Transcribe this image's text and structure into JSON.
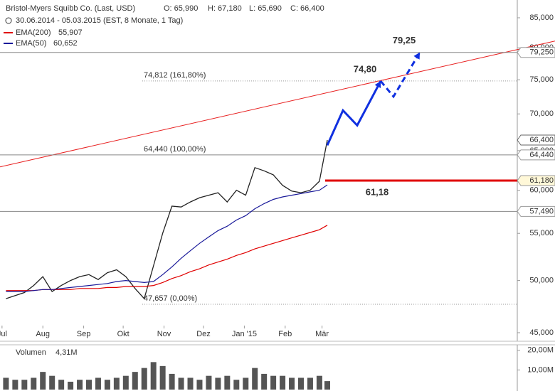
{
  "chart_data": {
    "type": "line",
    "title": "Bristol-Myers Squibb Co. (Last, USD)",
    "ohlc": [
      "O: 65,990",
      "H: 67,180",
      "L: 65,690",
      "C: 66,400"
    ],
    "subtitle": "30.06.2014 - 05.03.2015 (EST, 8 Monate, 1 Tag)",
    "log_scale": true,
    "xlim": [
      "2014-06-30",
      "2015-03-05"
    ],
    "xticks": [
      {
        "value": "2014-07-01",
        "label": "Jul"
      },
      {
        "value": "2014-08-01",
        "label": "Aug"
      },
      {
        "value": "2014-09-01",
        "label": "Sep"
      },
      {
        "value": "2014-10-01",
        "label": "Okt"
      },
      {
        "value": "2014-11-01",
        "label": "Nov"
      },
      {
        "value": "2014-12-01",
        "label": "Dez"
      },
      {
        "value": "2015-01-01",
        "label": "Jan '15"
      },
      {
        "value": "2015-02-01",
        "label": "Feb"
      },
      {
        "value": "2015-03-01",
        "label": "Mär"
      }
    ],
    "ylim": [
      45,
      85
    ],
    "yticks": [
      {
        "value": 45,
        "label": "45,000"
      },
      {
        "value": 50,
        "label": "50,000"
      },
      {
        "value": 55,
        "label": "55,000"
      },
      {
        "value": 60,
        "label": "60,000"
      },
      {
        "value": 65,
        "label": "65,000"
      },
      {
        "value": 70,
        "label": "70,000"
      },
      {
        "value": 75,
        "label": "75,000"
      },
      {
        "value": 80,
        "label": "80,000"
      },
      {
        "value": 85,
        "label": "85,000"
      }
    ],
    "x": [
      "2014-07-04",
      "2014-07-11",
      "2014-07-18",
      "2014-07-25",
      "2014-08-01",
      "2014-08-08",
      "2014-08-15",
      "2014-08-22",
      "2014-08-29",
      "2014-09-05",
      "2014-09-12",
      "2014-09-19",
      "2014-09-26",
      "2014-10-03",
      "2014-10-10",
      "2014-10-17",
      "2014-10-24",
      "2014-10-31",
      "2014-11-07",
      "2014-11-14",
      "2014-11-21",
      "2014-11-28",
      "2014-12-05",
      "2014-12-12",
      "2014-12-19",
      "2014-12-26",
      "2015-01-02",
      "2015-01-09",
      "2015-01-16",
      "2015-01-23",
      "2015-01-30",
      "2015-02-06",
      "2015-02-13",
      "2015-02-20",
      "2015-02-27",
      "2015-03-05"
    ],
    "series": [
      {
        "name": "Price",
        "color": "#222222",
        "values": [
          48.2,
          48.5,
          48.8,
          49.5,
          50.4,
          48.9,
          49.5,
          50.0,
          50.4,
          50.6,
          50.1,
          50.8,
          51.1,
          50.4,
          49.2,
          48.2,
          51.5,
          55.0,
          58.1,
          58.0,
          58.6,
          59.1,
          59.4,
          59.7,
          58.6,
          60.0,
          59.4,
          62.8,
          62.4,
          61.9,
          60.6,
          59.9,
          59.7,
          60.0,
          61.1,
          66.4
        ],
        "last_label": "66,400"
      },
      {
        "name": "EMA(200)",
        "color": "#e00000",
        "last_label": "55,907",
        "values": [
          49.0,
          49.0,
          49.0,
          49.0,
          49.1,
          49.1,
          49.1,
          49.1,
          49.2,
          49.2,
          49.2,
          49.3,
          49.3,
          49.4,
          49.4,
          49.4,
          49.5,
          49.8,
          50.2,
          50.5,
          50.9,
          51.2,
          51.6,
          51.9,
          52.2,
          52.6,
          52.9,
          53.3,
          53.6,
          53.9,
          54.2,
          54.5,
          54.8,
          55.1,
          55.4,
          55.907
        ]
      },
      {
        "name": "EMA(50)",
        "color": "#1a1a9a",
        "last_label": "60,652",
        "values": [
          48.9,
          48.9,
          48.9,
          49.0,
          49.1,
          49.1,
          49.2,
          49.3,
          49.4,
          49.5,
          49.6,
          49.7,
          49.9,
          50.0,
          49.9,
          49.8,
          49.9,
          50.6,
          51.4,
          52.3,
          53.1,
          53.9,
          54.6,
          55.3,
          55.8,
          56.5,
          57.0,
          57.8,
          58.4,
          58.9,
          59.2,
          59.4,
          59.6,
          59.8,
          60.0,
          60.652
        ]
      }
    ],
    "trendline": {
      "color": "#e82020",
      "values": [
        62.9,
        81.1
      ]
    },
    "levels": [
      {
        "value": 79.25,
        "tag": "79,250",
        "color": "#888888",
        "style": "solid"
      },
      {
        "value": 74.812,
        "label": "74,812 (161,80%)",
        "color": "#999999",
        "style": "dotted"
      },
      {
        "value": 64.44,
        "label": "64,440 (100,00%)",
        "tag": "64,440",
        "color": "#888888",
        "style": "solid"
      },
      {
        "value": 61.18,
        "tag": "61,180",
        "annotation": "61,18",
        "color": "#e00000",
        "style": "thick"
      },
      {
        "value": 57.49,
        "tag": "57,490",
        "color": "#888888",
        "style": "solid"
      },
      {
        "value": 47.657,
        "label": "47,657 (0,00%)",
        "color": "#999999",
        "style": "dotted"
      }
    ],
    "projection": {
      "color": "#1030e0",
      "values": [
        65.7,
        70.5,
        68.4,
        74.8,
        72.5,
        79.25
      ],
      "solid_until": 3,
      "value_labels": {
        "3": "74,80",
        "5": "79,25"
      }
    },
    "volume": {
      "name": "Volumen",
      "last_label": "4,31M",
      "color": "#555555",
      "ylim": [
        0,
        21
      ],
      "yticks": [
        {
          "value": 10,
          "label": "10,00M"
        },
        {
          "value": 20,
          "label": "20,00M"
        }
      ],
      "values": [
        6,
        5,
        5,
        6,
        9,
        7,
        5,
        4,
        5,
        5,
        6,
        5,
        6,
        7,
        9,
        11,
        14,
        12,
        8,
        6,
        6,
        5,
        7,
        6,
        7,
        5,
        6,
        11,
        8,
        7,
        7,
        6,
        6,
        6,
        7,
        4.31
      ]
    }
  }
}
